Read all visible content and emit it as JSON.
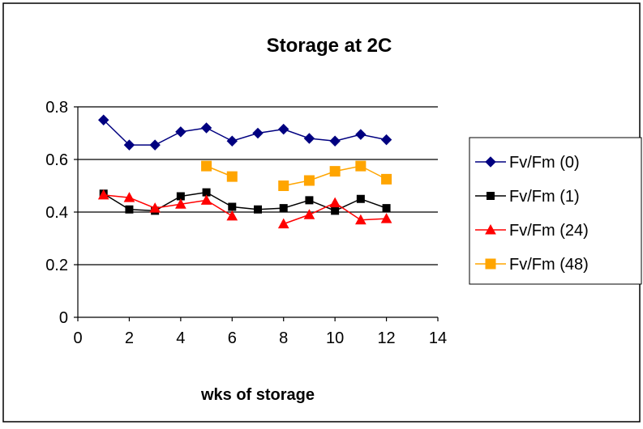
{
  "chart_data": {
    "type": "line",
    "title": "Storage at 2C",
    "xlabel": "wks of storage",
    "ylabel": "",
    "xlim": [
      0,
      14
    ],
    "ylim": [
      0,
      0.8
    ],
    "x_ticks": [
      0,
      2,
      4,
      6,
      8,
      10,
      12,
      14
    ],
    "y_ticks": [
      0,
      0.2,
      0.4,
      0.6,
      0.8
    ],
    "x_tick_labels": [
      "0",
      "2",
      "4",
      "6",
      "8",
      "10",
      "12",
      "14"
    ],
    "y_tick_labels": [
      "0",
      "0.2",
      "0.4",
      "0.6",
      "0.8"
    ],
    "grid": "horizontal major gridlines",
    "legend_position": "right",
    "series": [
      {
        "name": "Fv/Fm (0)",
        "color": "#000080",
        "marker": "diamond",
        "x": [
          1,
          2,
          3,
          4,
          5,
          6,
          7,
          8,
          9,
          10,
          11,
          12
        ],
        "y": [
          0.75,
          0.655,
          0.655,
          0.705,
          0.72,
          0.67,
          0.7,
          0.715,
          0.68,
          0.67,
          0.695,
          0.675
        ]
      },
      {
        "name": "Fv/Fm (1)",
        "color": "#000000",
        "marker": "square",
        "x": [
          1,
          2,
          3,
          4,
          5,
          6,
          7,
          8,
          9,
          10,
          11,
          12
        ],
        "y": [
          0.47,
          0.41,
          0.405,
          0.46,
          0.475,
          0.42,
          0.41,
          0.415,
          0.445,
          0.405,
          0.45,
          0.415
        ]
      },
      {
        "name": "Fv/Fm (24)",
        "color": "#ff0000",
        "marker": "triangle",
        "x": [
          1,
          2,
          3,
          4,
          5,
          6,
          null,
          8,
          9,
          10,
          11,
          12
        ],
        "y": [
          0.465,
          0.455,
          0.415,
          0.43,
          0.445,
          0.385,
          null,
          0.355,
          0.39,
          0.435,
          0.37,
          0.375
        ]
      },
      {
        "name": "Fv/Fm (48)",
        "color": "#ffa500",
        "marker": "square",
        "x": [
          5,
          6,
          null,
          8,
          9,
          10,
          11,
          12
        ],
        "y": [
          0.575,
          0.535,
          null,
          0.5,
          0.52,
          0.555,
          0.575,
          0.525
        ]
      }
    ]
  }
}
